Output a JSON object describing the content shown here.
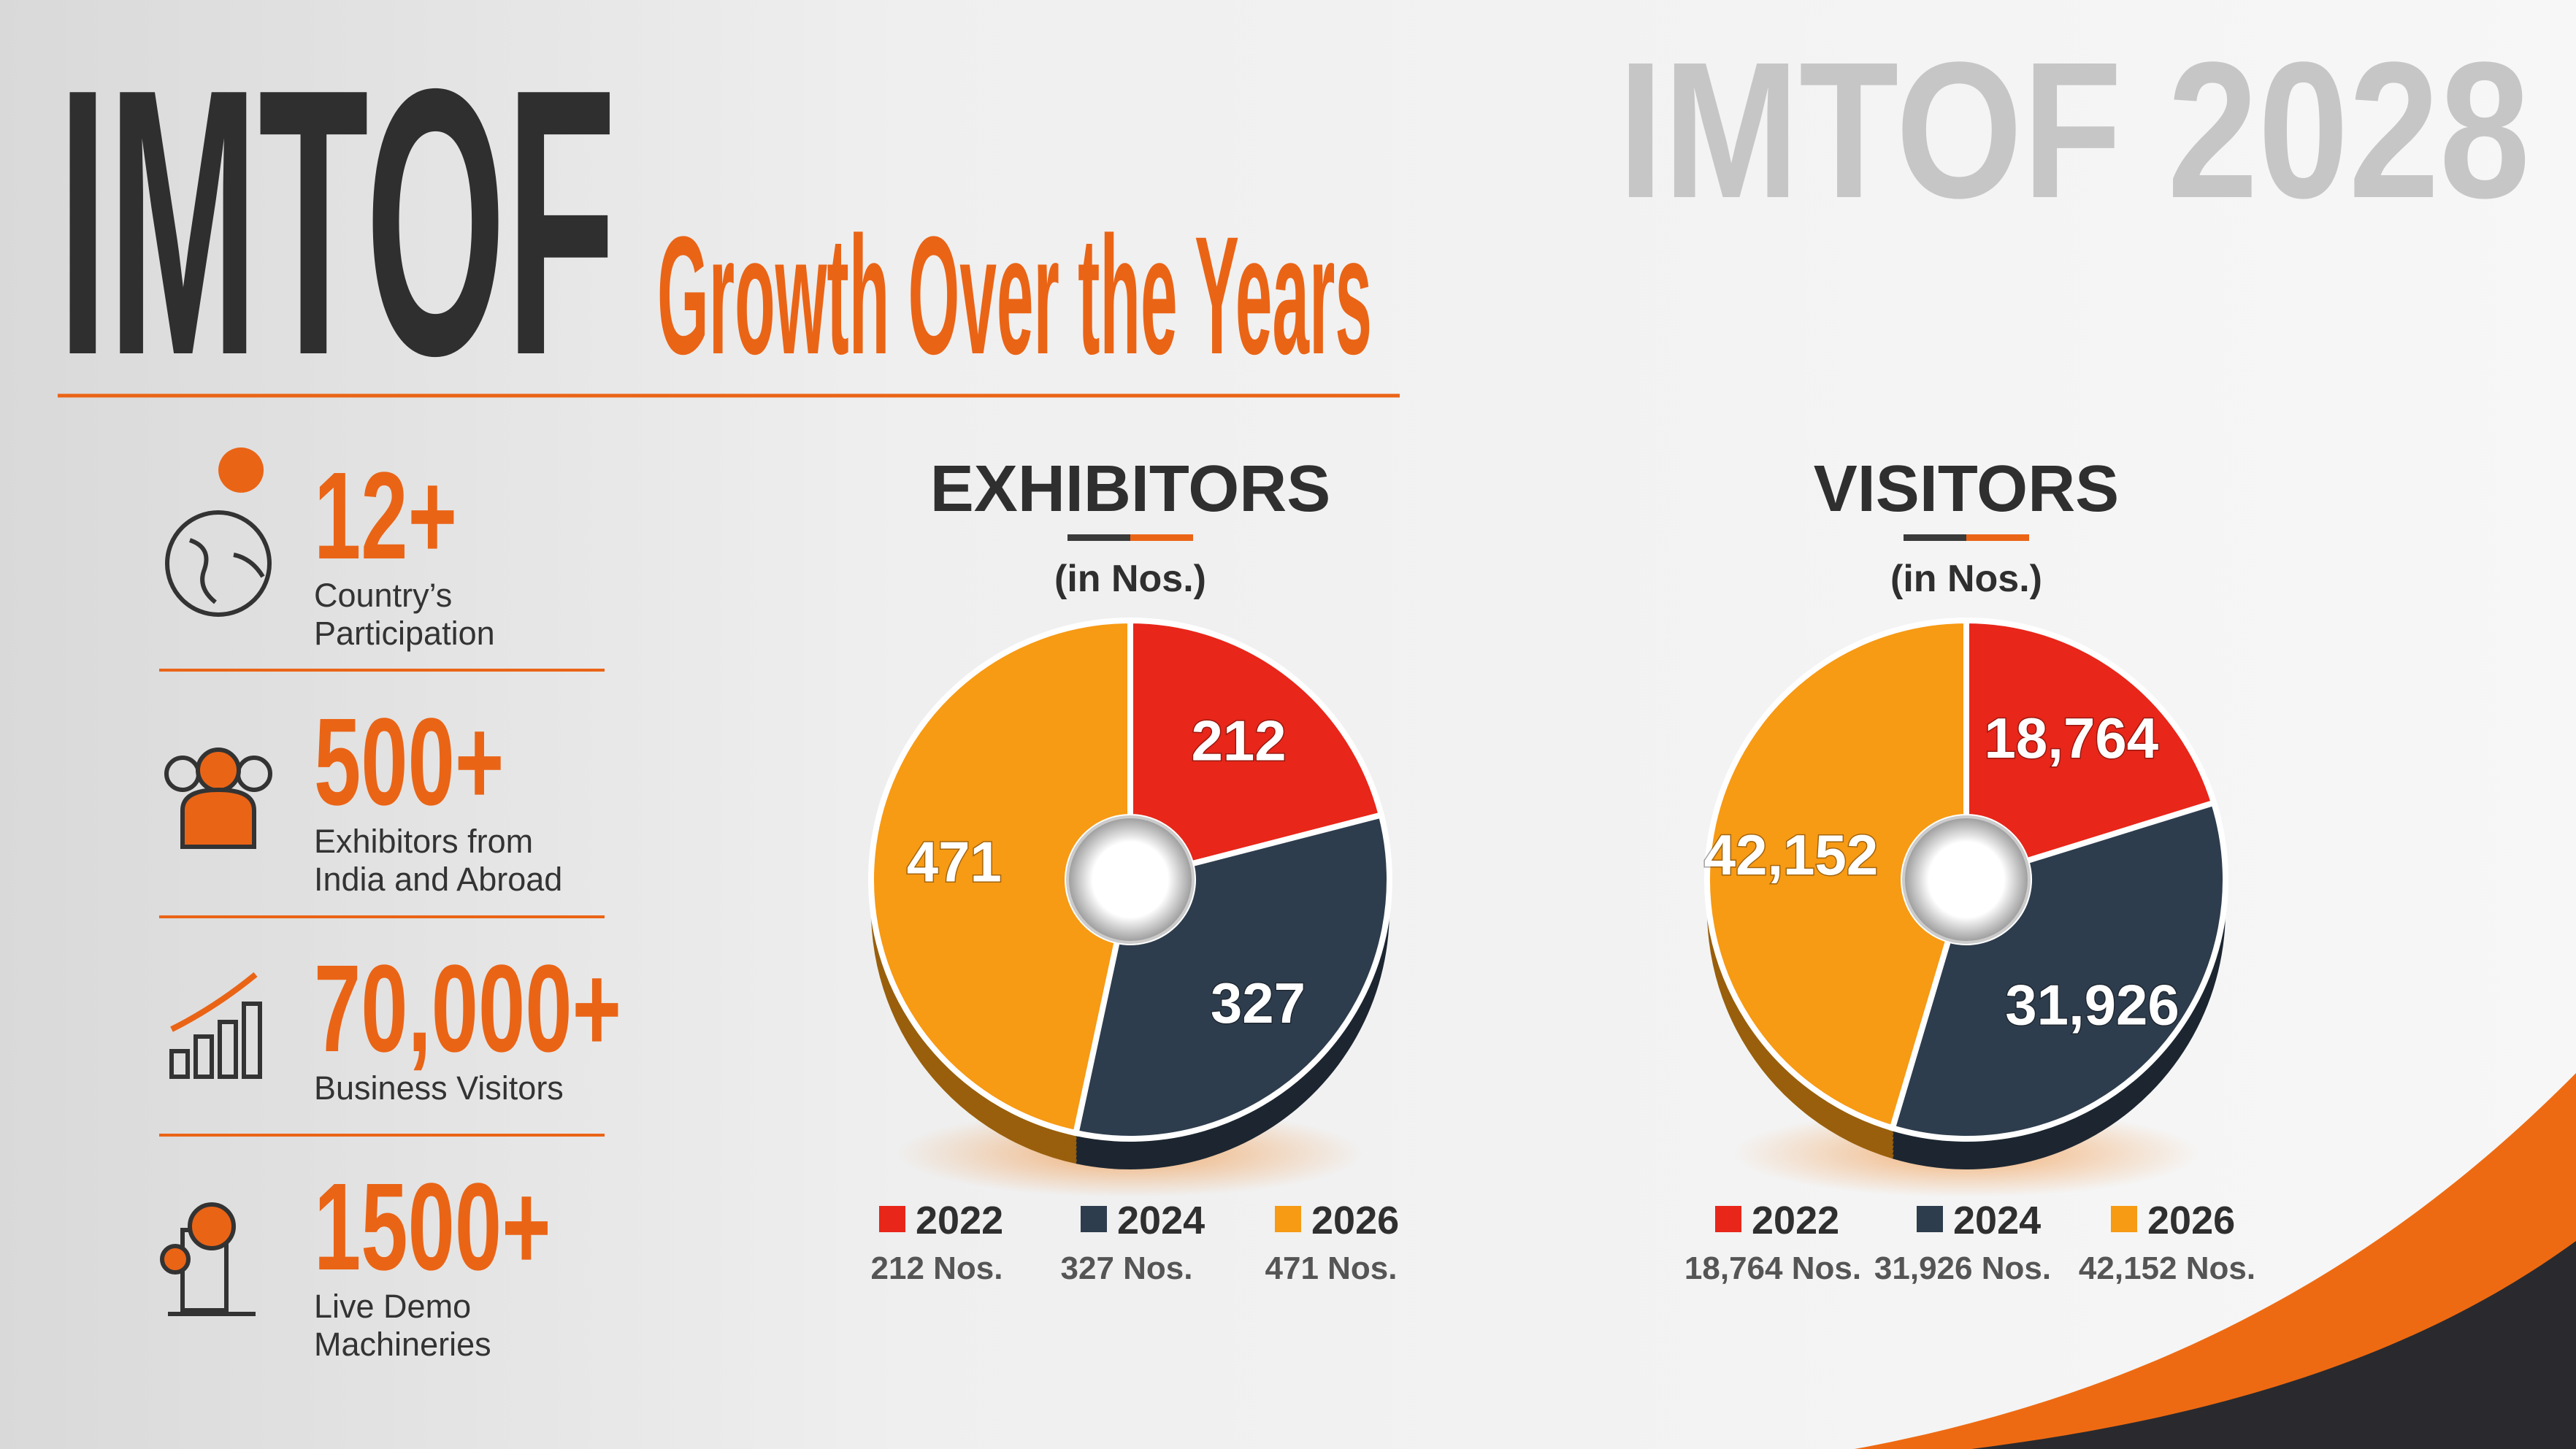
{
  "header": {
    "brand": "IMTOF",
    "tagline": "Growth Over the Years",
    "edition": "IMTOF 2028"
  },
  "stats": [
    {
      "value": "12+",
      "label": [
        "Country’s",
        "Participation"
      ]
    },
    {
      "value": "500+",
      "label": [
        "Exhibitors from",
        "India and Abroad"
      ]
    },
    {
      "value": "70,000+",
      "label": [
        "Business Visitors"
      ]
    },
    {
      "value": "1500+",
      "label": [
        "Live Demo",
        "Machineries"
      ]
    }
  ],
  "chart_data": [
    {
      "type": "donut",
      "title": "EXHIBITORS",
      "subtitle": "(in Nos.)",
      "categories": [
        "2022",
        "2024",
        "2026"
      ],
      "values": [
        212,
        327,
        471
      ],
      "colors": [
        "#e8261a",
        "#2e3d4d",
        "#f79a14"
      ],
      "legend_notes": [
        "212 Nos.",
        "327 Nos.",
        "471 Nos."
      ]
    },
    {
      "type": "donut",
      "title": "VISITORS",
      "subtitle": "(in Nos.)",
      "categories": [
        "2022",
        "2024",
        "2026"
      ],
      "values": [
        18764,
        31926,
        42152
      ],
      "value_labels": [
        "18,764",
        "31,926",
        "42,152"
      ],
      "colors": [
        "#e8261a",
        "#2e3d4d",
        "#f79a14"
      ],
      "legend_notes": [
        "18,764 Nos.",
        "31,926 Nos.",
        "42,152 Nos."
      ]
    }
  ]
}
